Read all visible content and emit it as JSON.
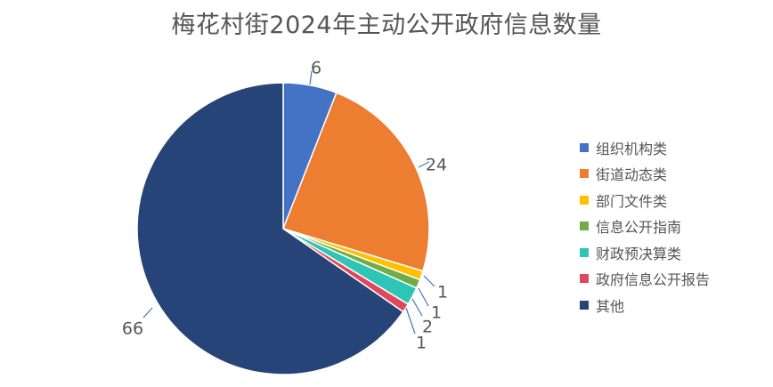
{
  "chart_data": {
    "type": "pie",
    "title": "梅花村街2024年主动公开政府信息数量",
    "categories": [
      "组织机构类",
      "街道动态类",
      "部门文件类",
      "信息公开指南",
      "财政预决算类",
      "政府信息公开报告",
      "其他"
    ],
    "values": [
      6,
      24,
      1,
      1,
      2,
      1,
      66
    ],
    "data_labels": [
      "6",
      "24",
      "1",
      "1",
      "2",
      "1",
      "66"
    ],
    "colors": [
      "#4472C4",
      "#ED7D31",
      "#FFC000",
      "#70AD47",
      "#2EC4B6",
      "#E0475B",
      "#264478"
    ],
    "legend_position": "right",
    "start_angle": "12 o'clock",
    "direction": "clockwise"
  }
}
